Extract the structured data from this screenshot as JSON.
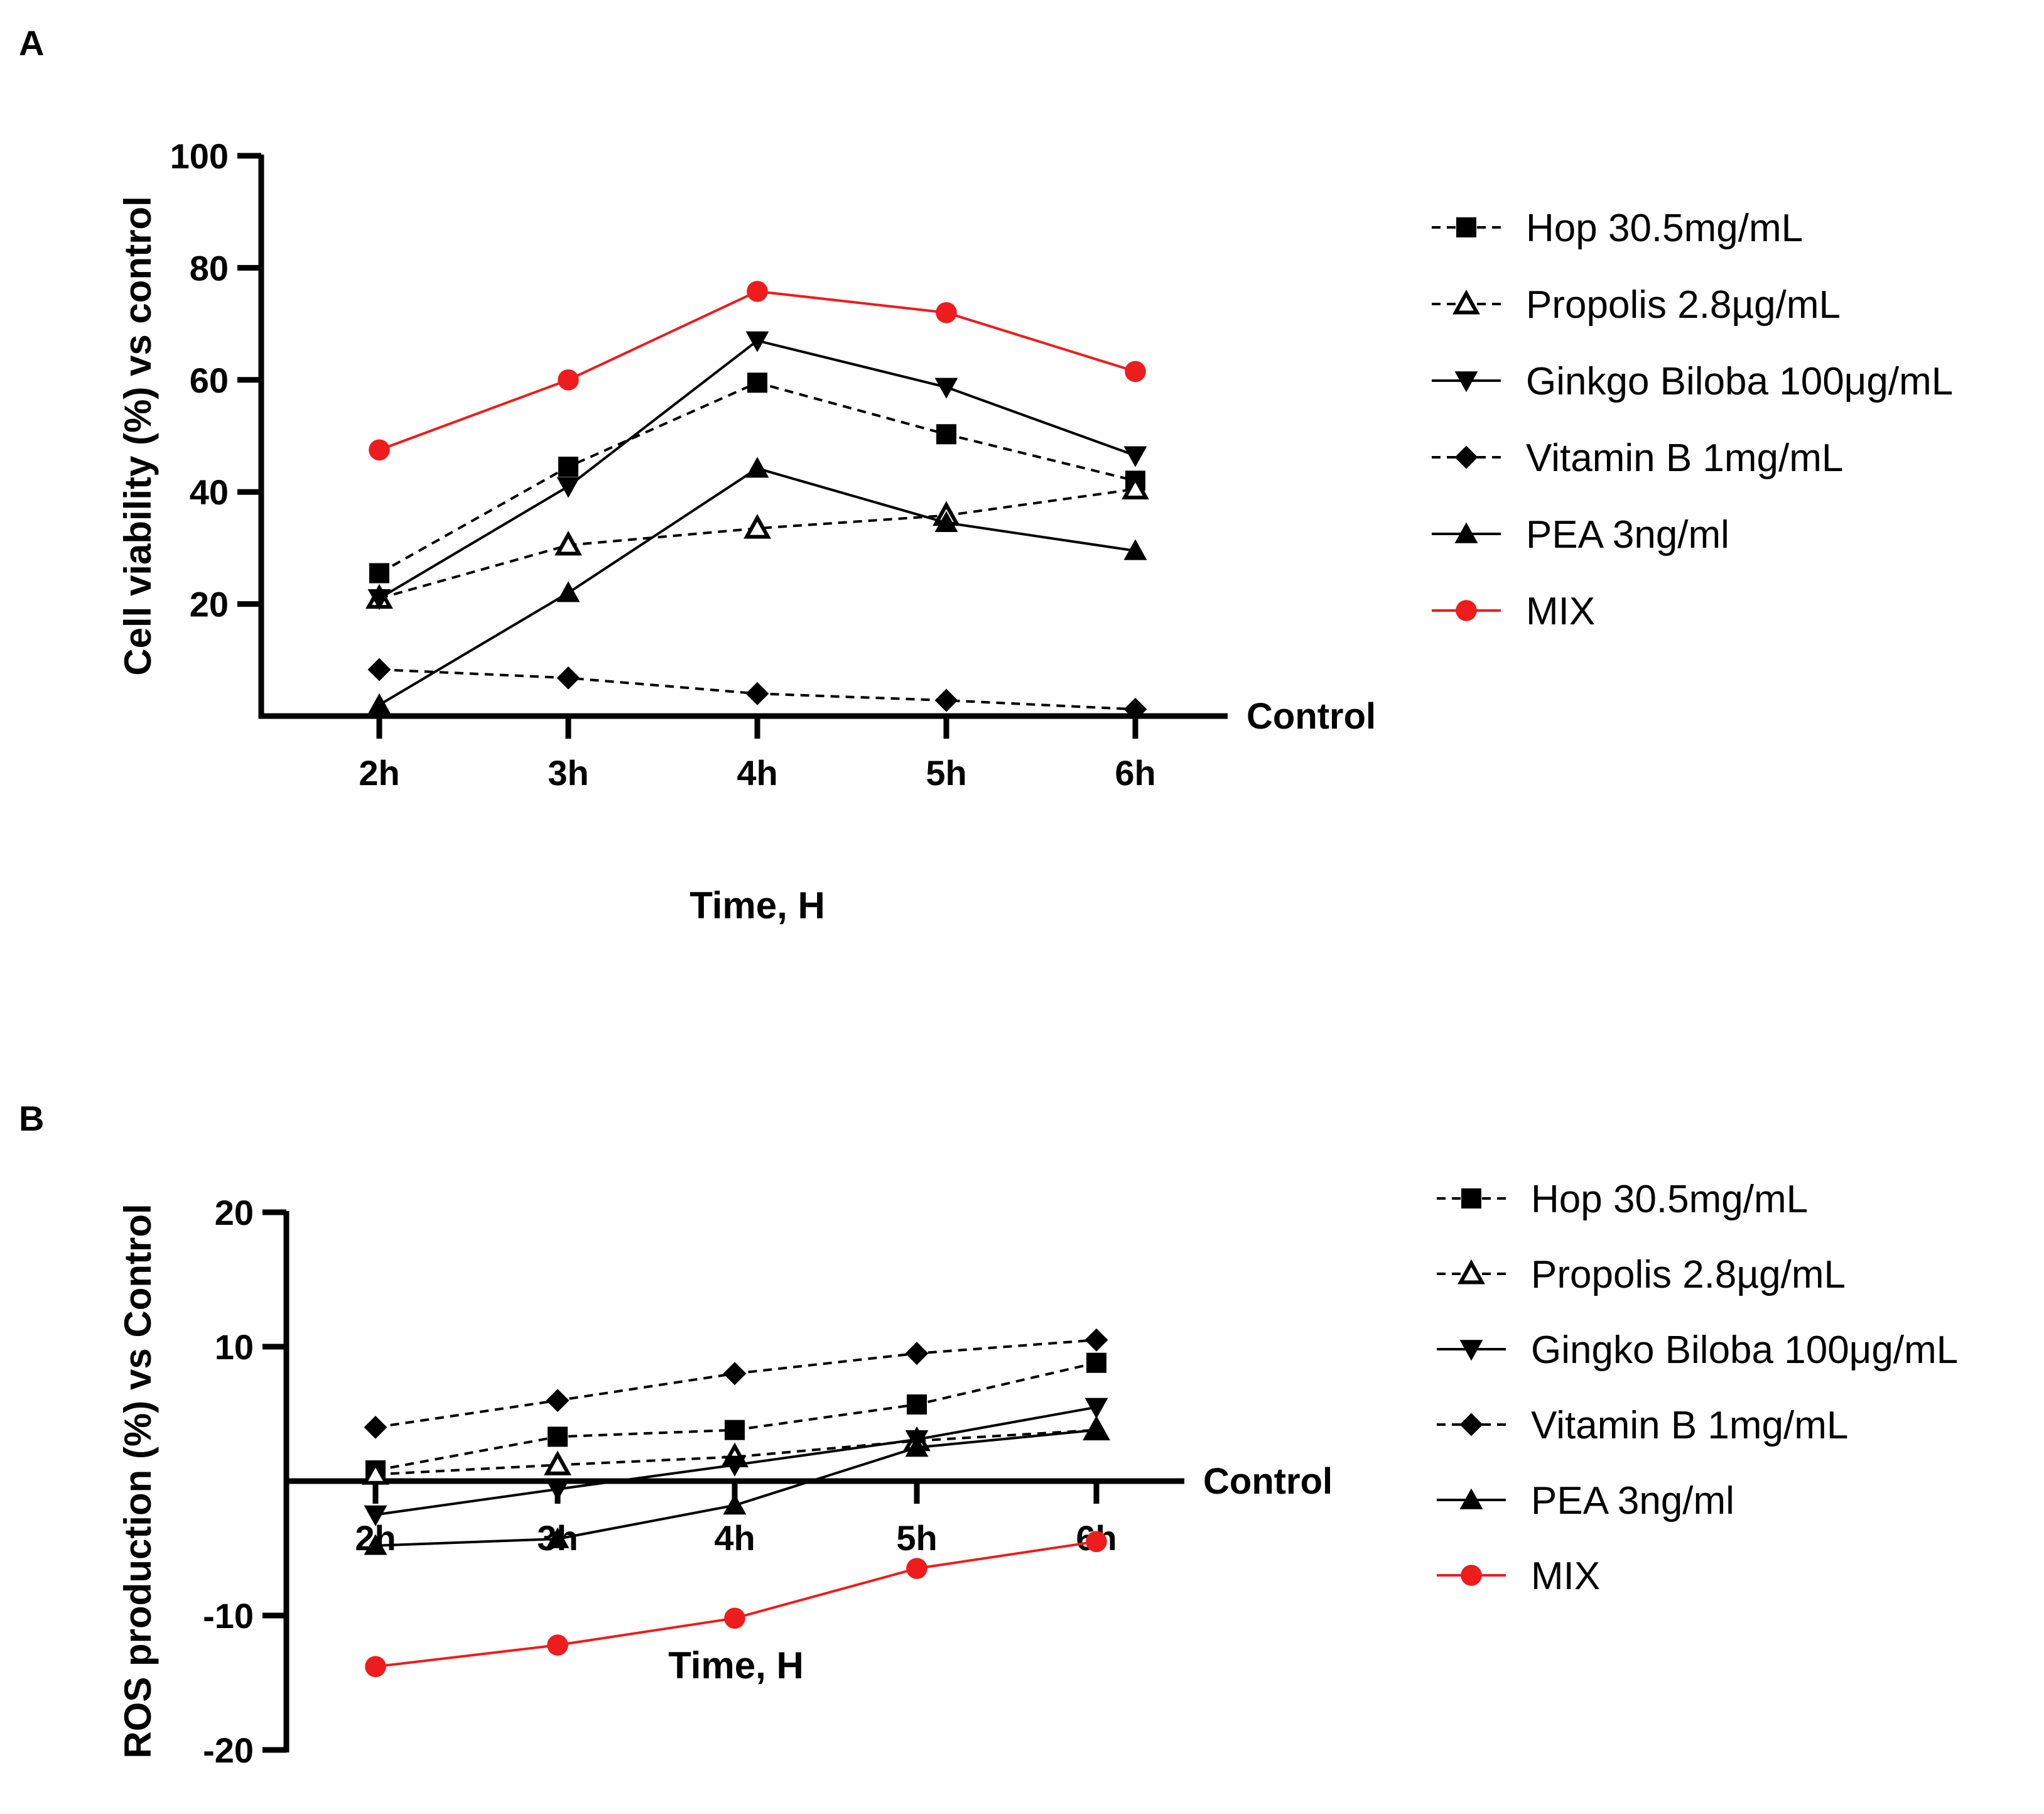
{
  "chart_data": [
    {
      "panel": "A",
      "type": "line",
      "xlabel": "Time, H",
      "ylabel": "Cell viability (%) vs control",
      "baseline_label": "Control",
      "categories": [
        "2h",
        "3h",
        "4h",
        "5h",
        "6h"
      ],
      "ylim": [
        0,
        100
      ],
      "yticks": [
        20,
        40,
        60,
        80,
        100
      ],
      "series": [
        {
          "name": "Hop 30.5mg/mL",
          "marker": "square",
          "dashed": true,
          "color": "#000000",
          "values": [
            25.5,
            44.5,
            59.5,
            50.3,
            42.0
          ]
        },
        {
          "name": "Propolis 2.8µg/mL",
          "marker": "triangle-open",
          "dashed": true,
          "color": "#000000",
          "values": [
            21.0,
            30.5,
            33.5,
            35.8,
            40.5
          ]
        },
        {
          "name": "Ginkgo Biloba 100μg/mL",
          "marker": "triangle-down",
          "dashed": false,
          "color": "#000000",
          "values": [
            21.0,
            41.0,
            67.0,
            58.7,
            46.5
          ]
        },
        {
          "name": "Vitamin B 1mg/mL",
          "marker": "diamond",
          "dashed": true,
          "color": "#000000",
          "values": [
            8.3,
            6.8,
            4.0,
            2.8,
            1.2
          ]
        },
        {
          "name": "PEA 3ng/ml",
          "marker": "triangle",
          "dashed": false,
          "color": "#000000",
          "values": [
            2.0,
            22.0,
            44.2,
            34.5,
            29.5
          ]
        },
        {
          "name": "MIX",
          "marker": "circle",
          "dashed": false,
          "color": "#ee1c1c",
          "values": [
            47.5,
            60.0,
            75.8,
            72.0,
            61.5
          ]
        }
      ]
    },
    {
      "panel": "B",
      "type": "line",
      "xlabel": "Time, H",
      "ylabel": "ROS production (%) vs Control",
      "baseline_label": "Control",
      "categories": [
        "2h",
        "3h",
        "4h",
        "5h",
        "6h"
      ],
      "ylim": [
        -20,
        20
      ],
      "yticks": [
        20,
        10,
        -10,
        -20
      ],
      "series": [
        {
          "name": "Hop 30.5mg/mL",
          "marker": "square",
          "dashed": true,
          "color": "#000000",
          "values": [
            0.8,
            3.3,
            3.8,
            5.7,
            8.8
          ]
        },
        {
          "name": "Propolis  2.8µg/mL",
          "marker": "triangle-open",
          "dashed": true,
          "color": "#000000",
          "values": [
            0.5,
            1.2,
            1.8,
            3.0,
            3.8
          ]
        },
        {
          "name": "Gingko Biloba 100μg/mL",
          "marker": "triangle-down",
          "dashed": false,
          "color": "#000000",
          "values": [
            -2.5,
            -0.6,
            1.2,
            3.1,
            5.5
          ]
        },
        {
          "name": "Vitamin B 1mg/mL",
          "marker": "diamond",
          "dashed": true,
          "color": "#000000",
          "values": [
            4.0,
            6.0,
            8.0,
            9.5,
            10.5
          ]
        },
        {
          "name": "PEA 3ng/ml",
          "marker": "triangle",
          "dashed": false,
          "color": "#000000",
          "values": [
            -4.8,
            -4.3,
            -1.8,
            2.5,
            3.8
          ]
        },
        {
          "name": "MIX",
          "marker": "circle",
          "dashed": false,
          "color": "#ee1c1c",
          "values": [
            -13.8,
            -12.2,
            -10.2,
            -6.5,
            -4.5
          ]
        }
      ]
    }
  ]
}
